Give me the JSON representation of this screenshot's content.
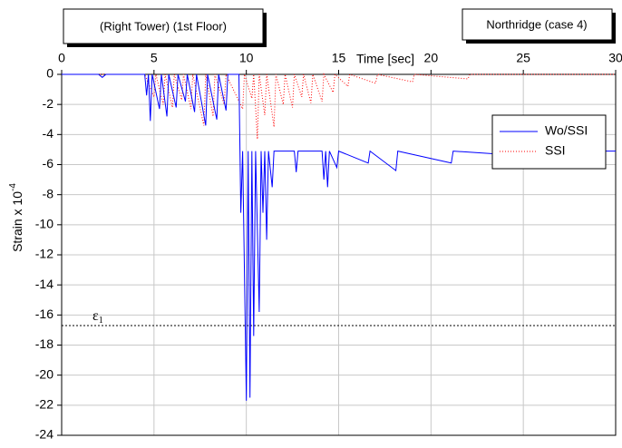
{
  "chart_data": {
    "type": "line",
    "title": "(Right Tower) (1st Floor)",
    "subtitle": "Northridge (case 4)",
    "x_label": "Time [sec]",
    "y_label": "Strain x 10",
    "y_label_exponent": "-4",
    "xlim": [
      0,
      30
    ],
    "xticks": [
      0,
      5,
      10,
      15,
      20,
      25,
      30
    ],
    "ylim": [
      -24,
      0
    ],
    "yticks": [
      0,
      -2,
      -4,
      -6,
      -8,
      -10,
      -12,
      -14,
      -16,
      -18,
      -20,
      -22,
      -24
    ],
    "grid": true,
    "legend": "upper right",
    "annotation": {
      "text": "ε",
      "subscript": "1",
      "value": -16.7
    },
    "series": [
      {
        "name": "Wo/SSI",
        "color": "#0000ff",
        "style": "solid",
        "x": [
          0,
          2,
          2.2,
          2.4,
          4.5,
          4.6,
          4.7,
          4.8,
          4.9,
          5.3,
          5.4,
          5.7,
          5.8,
          6.2,
          6.3,
          6.7,
          6.8,
          7.2,
          7.3,
          7.8,
          7.9,
          8.4,
          8.5,
          8.9,
          9.0,
          9.6,
          9.7,
          9.8,
          10.0,
          10.1,
          10.2,
          10.3,
          10.4,
          10.5,
          10.7,
          10.8,
          10.9,
          11.0,
          11.1,
          11.2,
          11.4,
          11.5,
          12.6,
          12.7,
          12.8,
          14.1,
          14.2,
          14.3,
          14.4,
          14.5,
          14.9,
          15.0,
          16.6,
          16.7,
          18.1,
          18.2,
          21.1,
          21.2,
          26.1,
          26.2,
          30
        ],
        "values": [
          0,
          0,
          -0.2,
          0,
          0,
          -1.4,
          0,
          -3.1,
          0,
          -2.3,
          0,
          -2.8,
          0,
          -2.2,
          0,
          -1.8,
          0,
          -2.5,
          0,
          -3.4,
          0,
          -3.0,
          0,
          -2.4,
          0,
          0,
          -9.2,
          -5.1,
          -21.7,
          -5.1,
          -21.5,
          -5.1,
          -17.4,
          -5.1,
          -15.8,
          -5.1,
          -9.2,
          -5.1,
          -11.0,
          -5.1,
          -7.5,
          -5.1,
          -5.1,
          -6.5,
          -5.1,
          -5.1,
          -7.0,
          -5.1,
          -7.5,
          -5.1,
          -6.2,
          -5.1,
          -5.9,
          -5.1,
          -6.4,
          -5.1,
          -5.9,
          -5.1,
          -5.5,
          -5.1,
          -5.1
        ]
      },
      {
        "name": "SSI",
        "color": "#ff0000",
        "style": "dotted",
        "x": [
          0,
          4.5,
          5.0,
          5.1,
          5.5,
          5.6,
          6.0,
          6.1,
          6.5,
          6.6,
          7.0,
          7.1,
          7.7,
          7.8,
          8.2,
          8.3,
          8.8,
          8.9,
          9.8,
          9.9,
          10.3,
          10.4,
          10.6,
          10.7,
          11.0,
          11.1,
          11.5,
          11.6,
          12.0,
          12.1,
          12.5,
          12.6,
          13.0,
          13.1,
          13.5,
          13.6,
          14.1,
          14.2,
          14.7,
          14.8,
          15.5,
          15.6,
          17.0,
          17.1,
          19.0,
          19.1,
          22.0,
          22.1,
          30
        ],
        "values": [
          0,
          0,
          -1.5,
          0,
          -2.0,
          0,
          -2.2,
          0,
          -1.7,
          0,
          -2.3,
          0,
          -3.4,
          0,
          -2.8,
          0,
          -2.0,
          0,
          -2.3,
          0,
          -1.6,
          0,
          -4.3,
          0,
          -2.7,
          0,
          -3.5,
          0,
          -2.0,
          0,
          -2.2,
          0,
          -1.5,
          0,
          -1.9,
          0,
          -1.8,
          0,
          -1.2,
          0,
          -0.8,
          0,
          -0.6,
          0,
          -0.5,
          0,
          -0.3,
          0,
          0
        ]
      }
    ]
  }
}
